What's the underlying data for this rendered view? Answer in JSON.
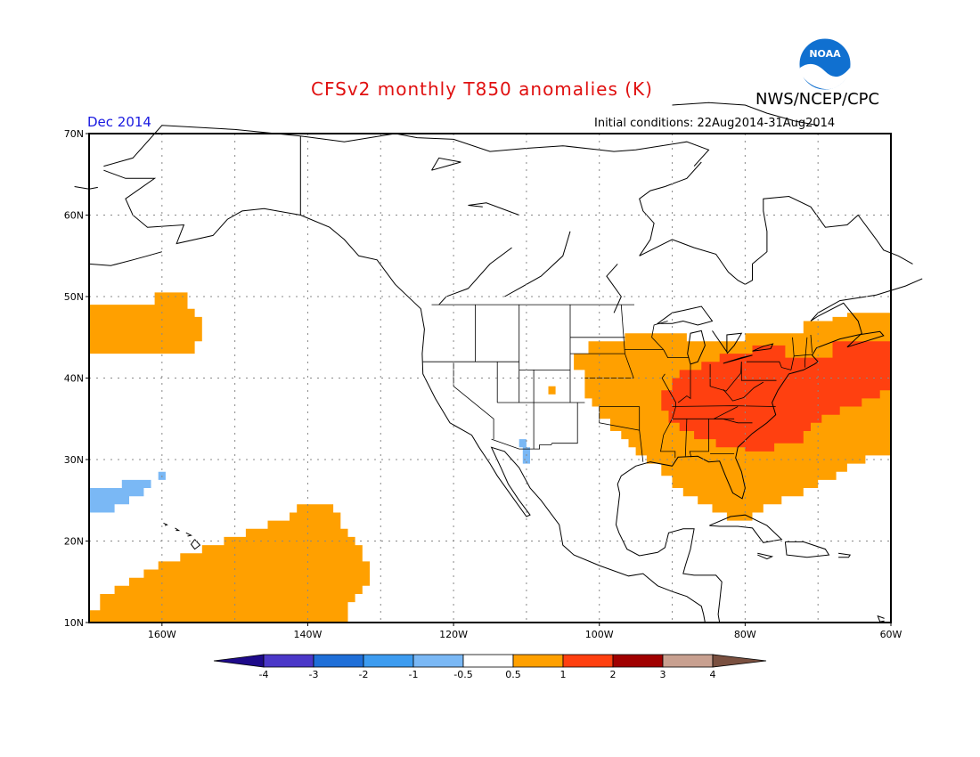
{
  "header": {
    "title": "CFSv2 monthly T850 anomalies (K)",
    "agency": "NWS/NCEP/CPC",
    "logo_text": "NOAA",
    "forecast_month": "Dec 2014",
    "initial_conditions": "Initial conditions: 22Aug2014-31Aug2014"
  },
  "map": {
    "lon_range": [
      -170,
      -60
    ],
    "lat_range": [
      10,
      70
    ],
    "lat_labels": [
      "70N",
      "60N",
      "50N",
      "40N",
      "30N",
      "20N",
      "10N"
    ],
    "lon_labels": [
      "160W",
      "140W",
      "120W",
      "100W",
      "80W",
      "60W"
    ],
    "grid": "dotted",
    "anomaly_regions": [
      {
        "name": "northeast-pacific-warm",
        "category": "0.5 to 1",
        "poly": [
          [
            -170,
            49
          ],
          [
            -161,
            49
          ],
          [
            -161,
            50.5
          ],
          [
            -156.5,
            50.5
          ],
          [
            -156.5,
            48.5
          ],
          [
            -155.5,
            48.5
          ],
          [
            -155.5,
            47.5
          ],
          [
            -154.5,
            47.5
          ],
          [
            -154.5,
            44.5
          ],
          [
            -155.5,
            44.5
          ],
          [
            -155.5,
            43
          ],
          [
            -170,
            43
          ]
        ]
      },
      {
        "name": "subtropical-pacific-cool",
        "category": "-1 to -0.5",
        "poly": [
          [
            -170,
            26.5
          ],
          [
            -165.5,
            26.5
          ],
          [
            -165.5,
            27.5
          ],
          [
            -160.5,
            27.5
          ],
          [
            -160.5,
            28.5
          ],
          [
            -159.5,
            28.5
          ],
          [
            -159.5,
            27.5
          ],
          [
            -161.5,
            27.5
          ],
          [
            -161.5,
            26.5
          ],
          [
            -162.5,
            26.5
          ],
          [
            -162.5,
            25.5
          ],
          [
            -164.5,
            25.5
          ],
          [
            -164.5,
            24.5
          ],
          [
            -166.5,
            24.5
          ],
          [
            -166.5,
            23.5
          ],
          [
            -170,
            23.5
          ]
        ]
      },
      {
        "name": "central-pacific-warm",
        "category": "0.5 to 1",
        "poly": [
          [
            -170,
            11.5
          ],
          [
            -168.5,
            11.5
          ],
          [
            -168.5,
            13.5
          ],
          [
            -166.5,
            13.5
          ],
          [
            -166.5,
            14.5
          ],
          [
            -164.5,
            14.5
          ],
          [
            -164.5,
            15.5
          ],
          [
            -162.5,
            15.5
          ],
          [
            -162.5,
            16.5
          ],
          [
            -160.5,
            16.5
          ],
          [
            -160.5,
            17.5
          ],
          [
            -157.5,
            17.5
          ],
          [
            -157.5,
            18.5
          ],
          [
            -154.5,
            18.5
          ],
          [
            -154.5,
            19.5
          ],
          [
            -151.5,
            19.5
          ],
          [
            -151.5,
            20.5
          ],
          [
            -148.5,
            20.5
          ],
          [
            -148.5,
            21.5
          ],
          [
            -145.5,
            21.5
          ],
          [
            -145.5,
            22.5
          ],
          [
            -142.5,
            22.5
          ],
          [
            -142.5,
            23.5
          ],
          [
            -141.5,
            23.5
          ],
          [
            -141.5,
            24.5
          ],
          [
            -136.5,
            24.5
          ],
          [
            -136.5,
            23.5
          ],
          [
            -135.5,
            23.5
          ],
          [
            -135.5,
            21.5
          ],
          [
            -134.5,
            21.5
          ],
          [
            -134.5,
            20.5
          ],
          [
            -133.5,
            20.5
          ],
          [
            -133.5,
            19.5
          ],
          [
            -132.5,
            19.5
          ],
          [
            -132.5,
            17.5
          ],
          [
            -131.5,
            17.5
          ],
          [
            -131.5,
            14.5
          ],
          [
            -132.5,
            14.5
          ],
          [
            -132.5,
            13.5
          ],
          [
            -133.5,
            13.5
          ],
          [
            -133.5,
            12.5
          ],
          [
            -134.5,
            12.5
          ],
          [
            -134.5,
            10
          ],
          [
            -170,
            10
          ]
        ]
      },
      {
        "name": "southwest-us-cool",
        "category": "-1 to -0.5",
        "poly": [
          [
            -111,
            32.5
          ],
          [
            -110,
            32.5
          ],
          [
            -110,
            31.5
          ],
          [
            -109.5,
            31.5
          ],
          [
            -109.5,
            29.5
          ],
          [
            -110.5,
            29.5
          ],
          [
            -110.5,
            31.5
          ],
          [
            -111,
            31.5
          ]
        ]
      },
      {
        "name": "colorado-warm-dot",
        "category": "0.5 to 1",
        "poly": [
          [
            -107,
            39
          ],
          [
            -106,
            39
          ],
          [
            -106,
            38
          ],
          [
            -107,
            38
          ]
        ]
      },
      {
        "name": "eastern-us-warm",
        "category": "0.5 to 1",
        "poly": [
          [
            -103.5,
            43
          ],
          [
            -101.5,
            43
          ],
          [
            -101.5,
            44.5
          ],
          [
            -96.5,
            44.5
          ],
          [
            -96.5,
            45.5
          ],
          [
            -88,
            45.5
          ],
          [
            -88,
            44.5
          ],
          [
            -80,
            44.5
          ],
          [
            -80,
            45.5
          ],
          [
            -72,
            45.5
          ],
          [
            -72,
            47
          ],
          [
            -68,
            47
          ],
          [
            -68,
            47.5
          ],
          [
            -66,
            47.5
          ],
          [
            -66,
            48
          ],
          [
            -60,
            48
          ],
          [
            -60,
            30.5
          ],
          [
            -63.5,
            30.5
          ],
          [
            -63.5,
            29.5
          ],
          [
            -66,
            29.5
          ],
          [
            -66,
            28.5
          ],
          [
            -67.5,
            28.5
          ],
          [
            -67.5,
            27.5
          ],
          [
            -70,
            27.5
          ],
          [
            -70,
            26.5
          ],
          [
            -72,
            26.5
          ],
          [
            -72,
            25.5
          ],
          [
            -75,
            25.5
          ],
          [
            -75,
            24.5
          ],
          [
            -77.5,
            24.5
          ],
          [
            -77.5,
            23.5
          ],
          [
            -79,
            23.5
          ],
          [
            -79,
            22.5
          ],
          [
            -82.5,
            22.5
          ],
          [
            -82.5,
            23.5
          ],
          [
            -84.5,
            23.5
          ],
          [
            -84.5,
            24.5
          ],
          [
            -86.5,
            24.5
          ],
          [
            -86.5,
            25.5
          ],
          [
            -88.5,
            25.5
          ],
          [
            -88.5,
            26.5
          ],
          [
            -90,
            26.5
          ],
          [
            -90,
            28
          ],
          [
            -91.5,
            28
          ],
          [
            -91.5,
            29.5
          ],
          [
            -93.5,
            29.5
          ],
          [
            -93.5,
            30.5
          ],
          [
            -95,
            30.5
          ],
          [
            -95,
            31.5
          ],
          [
            -96,
            31.5
          ],
          [
            -96,
            32.5
          ],
          [
            -97,
            32.5
          ],
          [
            -97,
            33.5
          ],
          [
            -98.5,
            33.5
          ],
          [
            -98.5,
            35
          ],
          [
            -100,
            35
          ],
          [
            -100,
            36.5
          ],
          [
            -101,
            36.5
          ],
          [
            -101,
            37.5
          ],
          [
            -102,
            37.5
          ],
          [
            -102,
            41
          ],
          [
            -103.5,
            41
          ]
        ]
      },
      {
        "name": "eastern-us-strong-warm",
        "category": "1 to 2",
        "poly": [
          [
            -92,
            36
          ],
          [
            -91.5,
            36
          ],
          [
            -91.5,
            38.5
          ],
          [
            -90,
            38.5
          ],
          [
            -90,
            40
          ],
          [
            -89,
            40
          ],
          [
            -89,
            41
          ],
          [
            -86,
            41
          ],
          [
            -86,
            42
          ],
          [
            -83.5,
            42
          ],
          [
            -83.5,
            43
          ],
          [
            -79,
            43
          ],
          [
            -79,
            44
          ],
          [
            -74.5,
            44
          ],
          [
            -74.5,
            42.5
          ],
          [
            -68,
            42.5
          ],
          [
            -68,
            44.5
          ],
          [
            -60,
            44.5
          ],
          [
            -60,
            38.5
          ],
          [
            -61.5,
            38.5
          ],
          [
            -61.5,
            37.5
          ],
          [
            -64,
            37.5
          ],
          [
            -64,
            36.5
          ],
          [
            -67,
            36.5
          ],
          [
            -67,
            35.5
          ],
          [
            -69.5,
            35.5
          ],
          [
            -69.5,
            34.5
          ],
          [
            -71,
            34.5
          ],
          [
            -71,
            33.5
          ],
          [
            -72,
            33.5
          ],
          [
            -72,
            32
          ],
          [
            -76,
            32
          ],
          [
            -76,
            31
          ],
          [
            -80,
            31
          ],
          [
            -80,
            31.5
          ],
          [
            -84,
            31.5
          ],
          [
            -84,
            32.5
          ],
          [
            -87,
            32.5
          ],
          [
            -87,
            33.5
          ],
          [
            -89,
            33.5
          ],
          [
            -89,
            34.5
          ],
          [
            -90.5,
            34.5
          ],
          [
            -90.5,
            36
          ]
        ]
      }
    ]
  },
  "legend": {
    "labels": [
      "-4",
      "-3",
      "-2",
      "-1",
      "-0.5",
      "0.5",
      "1",
      "2",
      "3",
      "4"
    ],
    "colors": [
      "#1e0a8a",
      "#4b38c8",
      "#1f6fd8",
      "#3d9cf0",
      "#7ab8f5",
      "#ffffff",
      "#ffa000",
      "#ff4010",
      "#a00000",
      "#c8a090",
      "#7a5040"
    ],
    "category_colors": {
      "-1 to -0.5": "#7ab8f5",
      "0.5 to 1": "#ffa000",
      "1 to 2": "#ff4010"
    }
  }
}
